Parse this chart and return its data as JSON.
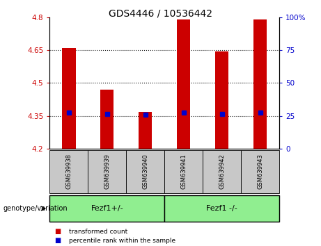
{
  "title": "GDS4446 / 10536442",
  "samples": [
    "GSM639938",
    "GSM639939",
    "GSM639940",
    "GSM639941",
    "GSM639942",
    "GSM639943"
  ],
  "bar_heights": [
    4.66,
    4.47,
    4.37,
    4.79,
    4.645,
    4.79
  ],
  "percentile_values": [
    4.365,
    4.36,
    4.355,
    4.365,
    4.36,
    4.365
  ],
  "y_min": 4.2,
  "y_max": 4.8,
  "y_ticks": [
    4.2,
    4.35,
    4.5,
    4.65,
    4.8
  ],
  "y_tick_labels": [
    "4.2",
    "4.35",
    "4.5",
    "4.65",
    "4.8"
  ],
  "right_y_ticks": [
    0,
    25,
    50,
    75,
    100
  ],
  "dotted_lines": [
    4.35,
    4.5,
    4.65
  ],
  "bar_color": "#cc0000",
  "blue_marker_color": "#0000cc",
  "group1_label": "Fezf1+/-",
  "group2_label": "Fezf1 -/-",
  "group_bg_color": "#90ee90",
  "sample_bg_color": "#c8c8c8",
  "legend_red_label": "transformed count",
  "legend_blue_label": "percentile rank within the sample",
  "genotype_label": "genotype/variation",
  "right_y_label_color": "#0000cc",
  "left_y_label_color": "#cc0000"
}
